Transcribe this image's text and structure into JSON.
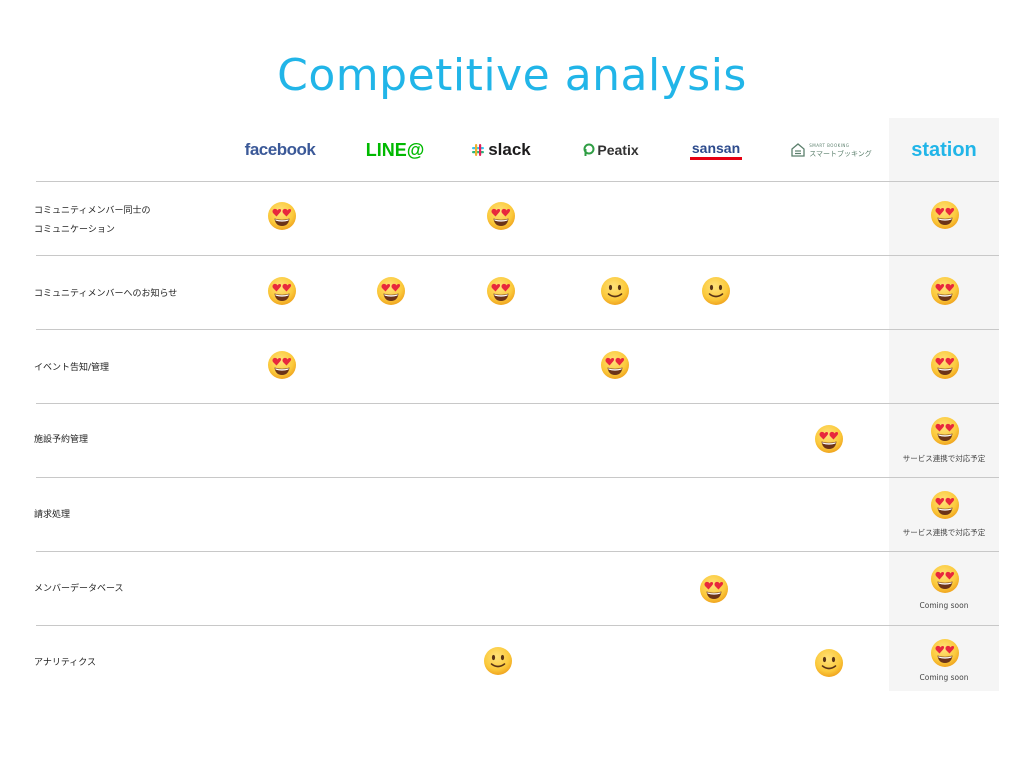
{
  "title": "Competitive analysis",
  "logos": {
    "facebook": "facebook",
    "line": "LINE@",
    "slack": "slack",
    "peatix": "Peatix",
    "sansan": "sansan",
    "smart_booking_top": "SMART BOOKING",
    "smart_booking": "スマートブッキング",
    "station": "station"
  },
  "rows": [
    {
      "label_line1": "コミュニティメンバー同士の",
      "label_line2": "コミュニケーション"
    },
    {
      "label": "コミュニティメンバーへのお知らせ"
    },
    {
      "label": "イベント告知/管理"
    },
    {
      "label": "施設予約管理"
    },
    {
      "label": "請求処理",
      "note": "サービス連携で対応予定"
    },
    {
      "label": "メンバーデータベース",
      "note": "Coming soon"
    },
    {
      "label": "アナリティクス",
      "note": "Coming soon"
    }
  ],
  "notes": {
    "row4": "サービス連携で対応予定",
    "row5": "サービス連携で対応予定",
    "row6": "Coming soon",
    "row7": "Coming soon"
  },
  "ratings": {
    "legend": {
      "heart_eyes": "smiling-face-with-heart-eyes",
      "smile": "slightly-smiling-face"
    },
    "matrix": [
      {
        "facebook": "heart_eyes",
        "slack": "heart_eyes",
        "station": "heart_eyes"
      },
      {
        "facebook": "heart_eyes",
        "line": "heart_eyes",
        "slack": "heart_eyes",
        "peatix": "smile",
        "sansan": "smile",
        "station": "heart_eyes"
      },
      {
        "facebook": "heart_eyes",
        "peatix": "heart_eyes",
        "station": "heart_eyes"
      },
      {
        "smart_booking": "heart_eyes",
        "station": "heart_eyes"
      },
      {
        "station": "heart_eyes"
      },
      {
        "sansan": "heart_eyes",
        "station": "heart_eyes"
      },
      {
        "slack": "smile",
        "smart_booking": "smile",
        "station": "heart_eyes"
      }
    ]
  },
  "colors": {
    "title": "#21b5e8",
    "facebook": "#3b5998",
    "line": "#00b900",
    "station": "#21b5e8",
    "sansan": "#2c4a8c",
    "sansan_bar": "#e60012"
  }
}
